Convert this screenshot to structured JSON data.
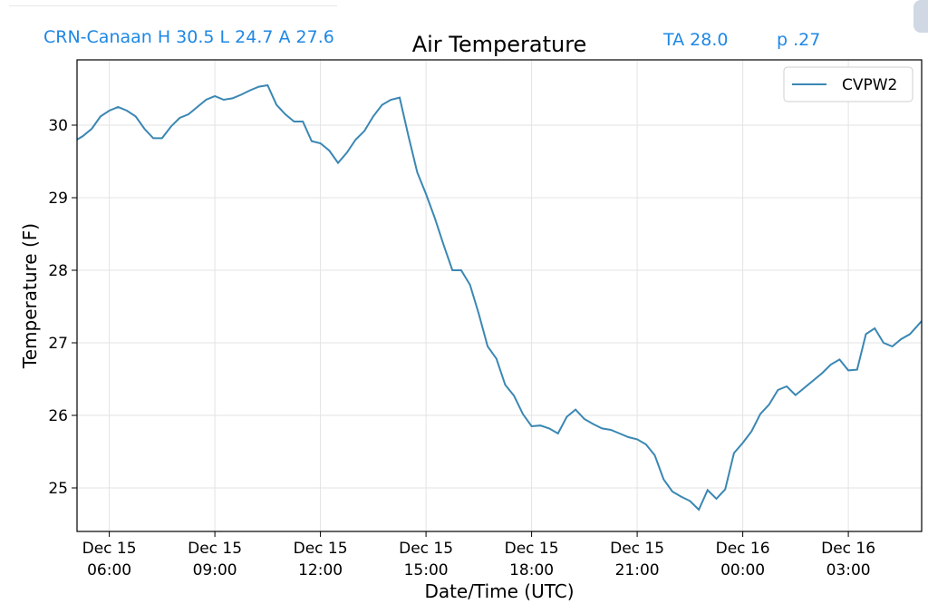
{
  "header": {
    "station_summary": "CRN-Canaan H 30.5 L 24.7 A 27.6",
    "ta": "TA 28.0",
    "p": "p .27"
  },
  "chart_data": {
    "type": "line",
    "title": "Air Temperature",
    "xlabel": "Date/Time (UTC)",
    "ylabel": "Temperature (F)",
    "ylim": [
      24.4,
      30.9
    ],
    "xlim": [
      "2023-12-15T05:05",
      "2023-12-16T05:05"
    ],
    "yticks": [
      25,
      26,
      27,
      28,
      29,
      30
    ],
    "xticks": [
      {
        "at": "2023-12-15T06:00",
        "line1": "Dec 15",
        "line2": "06:00"
      },
      {
        "at": "2023-12-15T09:00",
        "line1": "Dec 15",
        "line2": "09:00"
      },
      {
        "at": "2023-12-15T12:00",
        "line1": "Dec 15",
        "line2": "12:00"
      },
      {
        "at": "2023-12-15T15:00",
        "line1": "Dec 15",
        "line2": "15:00"
      },
      {
        "at": "2023-12-15T18:00",
        "line1": "Dec 15",
        "line2": "18:00"
      },
      {
        "at": "2023-12-15T21:00",
        "line1": "Dec 15",
        "line2": "21:00"
      },
      {
        "at": "2023-12-16T00:00",
        "line1": "Dec 16",
        "line2": "00:00"
      },
      {
        "at": "2023-12-16T03:00",
        "line1": "Dec 16",
        "line2": "03:00"
      }
    ],
    "grid": true,
    "legend_position": "top-right",
    "series": [
      {
        "name": "CVPW2",
        "color": "#3a87b3",
        "x": [
          "2023-12-15T05:05",
          "2023-12-15T05:15",
          "2023-12-15T05:30",
          "2023-12-15T05:45",
          "2023-12-15T06:00",
          "2023-12-15T06:15",
          "2023-12-15T06:30",
          "2023-12-15T06:45",
          "2023-12-15T07:00",
          "2023-12-15T07:15",
          "2023-12-15T07:30",
          "2023-12-15T07:45",
          "2023-12-15T08:00",
          "2023-12-15T08:15",
          "2023-12-15T08:30",
          "2023-12-15T08:45",
          "2023-12-15T09:00",
          "2023-12-15T09:15",
          "2023-12-15T09:30",
          "2023-12-15T09:45",
          "2023-12-15T10:00",
          "2023-12-15T10:15",
          "2023-12-15T10:30",
          "2023-12-15T10:45",
          "2023-12-15T11:00",
          "2023-12-15T11:15",
          "2023-12-15T11:30",
          "2023-12-15T11:45",
          "2023-12-15T12:00",
          "2023-12-15T12:15",
          "2023-12-15T12:30",
          "2023-12-15T12:45",
          "2023-12-15T13:00",
          "2023-12-15T13:15",
          "2023-12-15T13:30",
          "2023-12-15T13:45",
          "2023-12-15T14:00",
          "2023-12-15T14:15",
          "2023-12-15T14:30",
          "2023-12-15T14:45",
          "2023-12-15T15:00",
          "2023-12-15T15:15",
          "2023-12-15T15:30",
          "2023-12-15T15:45",
          "2023-12-15T16:00",
          "2023-12-15T16:15",
          "2023-12-15T16:30",
          "2023-12-15T16:45",
          "2023-12-15T17:00",
          "2023-12-15T17:15",
          "2023-12-15T17:30",
          "2023-12-15T17:45",
          "2023-12-15T18:00",
          "2023-12-15T18:15",
          "2023-12-15T18:30",
          "2023-12-15T18:45",
          "2023-12-15T19:00",
          "2023-12-15T19:15",
          "2023-12-15T19:30",
          "2023-12-15T19:45",
          "2023-12-15T20:00",
          "2023-12-15T20:15",
          "2023-12-15T20:30",
          "2023-12-15T20:45",
          "2023-12-15T21:00",
          "2023-12-15T21:15",
          "2023-12-15T21:30",
          "2023-12-15T21:45",
          "2023-12-15T22:00",
          "2023-12-15T22:15",
          "2023-12-15T22:30",
          "2023-12-15T22:45",
          "2023-12-15T23:00",
          "2023-12-15T23:15",
          "2023-12-15T23:30",
          "2023-12-15T23:45",
          "2023-12-16T00:00",
          "2023-12-16T00:15",
          "2023-12-16T00:30",
          "2023-12-16T00:45",
          "2023-12-16T01:00",
          "2023-12-16T01:15",
          "2023-12-16T01:30",
          "2023-12-16T01:45",
          "2023-12-16T02:00",
          "2023-12-16T02:15",
          "2023-12-16T02:30",
          "2023-12-16T02:45",
          "2023-12-16T03:00",
          "2023-12-16T03:15",
          "2023-12-16T03:30",
          "2023-12-16T03:45",
          "2023-12-16T04:00",
          "2023-12-16T04:15",
          "2023-12-16T04:30",
          "2023-12-16T04:45",
          "2023-12-16T05:05"
        ],
        "y": [
          29.8,
          29.85,
          29.95,
          30.12,
          30.2,
          30.25,
          30.2,
          30.12,
          29.95,
          29.82,
          29.82,
          29.98,
          30.1,
          30.15,
          30.25,
          30.35,
          30.4,
          30.35,
          30.37,
          30.42,
          30.48,
          30.53,
          30.55,
          30.28,
          30.15,
          30.05,
          30.05,
          29.78,
          29.75,
          29.65,
          29.48,
          29.62,
          29.8,
          29.92,
          30.12,
          30.28,
          30.35,
          30.38,
          29.85,
          29.35,
          29.05,
          28.72,
          28.35,
          28.0,
          28.0,
          27.8,
          27.4,
          26.95,
          26.78,
          26.42,
          26.27,
          26.02,
          25.85,
          25.86,
          25.82,
          25.75,
          25.98,
          26.08,
          25.95,
          25.88,
          25.82,
          25.8,
          25.75,
          25.7,
          25.67,
          25.6,
          25.45,
          25.12,
          24.95,
          24.88,
          24.82,
          24.7,
          24.97,
          24.85,
          24.98,
          25.48,
          25.62,
          25.78,
          26.02,
          26.15,
          26.35,
          26.4,
          26.28,
          26.38,
          26.48,
          26.58,
          26.7,
          26.77,
          26.62,
          26.63,
          27.12,
          27.2,
          27.0,
          26.95,
          27.05,
          27.12,
          27.3
        ]
      }
    ]
  }
}
